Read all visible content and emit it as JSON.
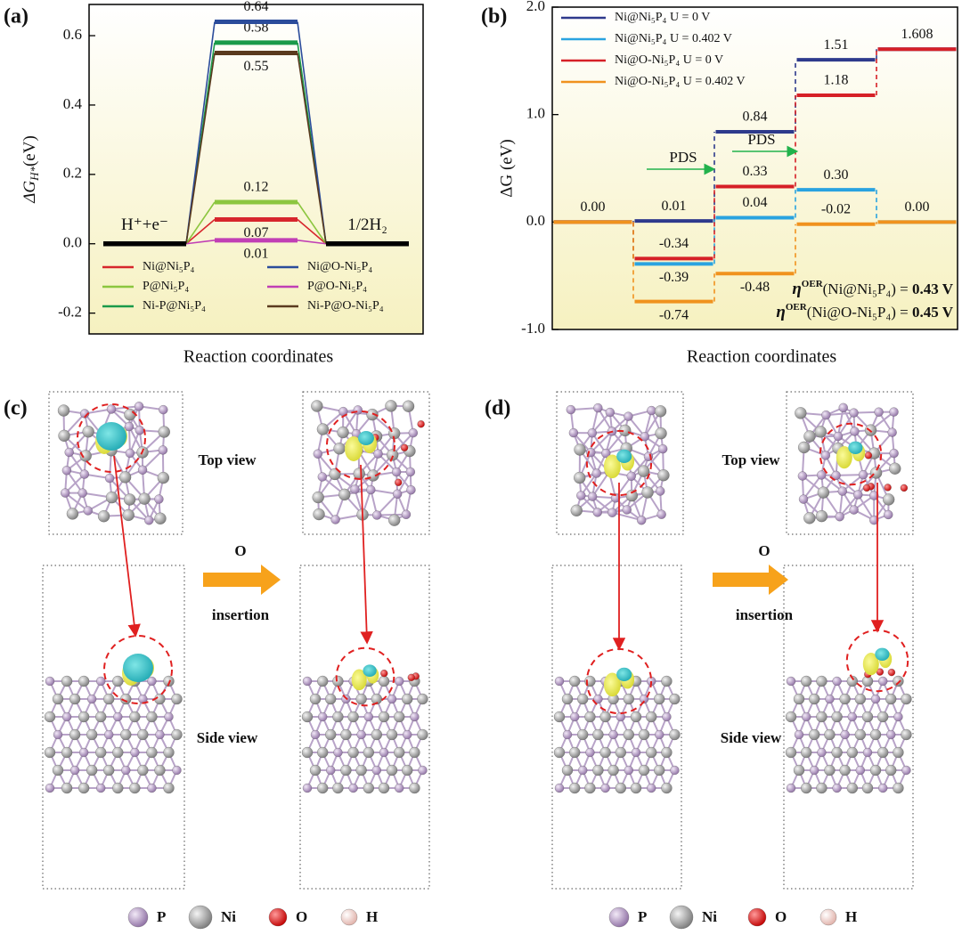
{
  "chart_data": [
    {
      "type": "step",
      "panel_label": "(a)",
      "ylabel": {
        "main": "ΔG",
        "sub": "H*",
        "unit": "(eV)"
      },
      "xlabel": "Reaction coordinates",
      "categories": [
        "H⁺+e⁻",
        null,
        "1/2H₂"
      ],
      "ylim": [
        -0.26,
        0.69
      ],
      "yticks": [
        -0.2,
        {
          "value": 0,
          "label": "0.0"
        },
        0.2,
        0.4,
        0.6
      ],
      "end_color": "#000000",
      "connector": "solid",
      "legend": "bottom",
      "series": [
        {
          "name": "Ni@Ni₅P₄",
          "color": "#d7262c",
          "values": [
            0,
            0.07,
            0
          ],
          "value_labels": [
            null,
            "0.07",
            null
          ]
        },
        {
          "name": "P@Ni₅P₄",
          "color": "#8cc63f",
          "values": [
            0,
            0.12,
            0
          ],
          "value_labels": [
            null,
            "0.12",
            null
          ]
        },
        {
          "name": "Ni-P@Ni₅P₄",
          "color": "#1a9a4a",
          "values": [
            0,
            0.58,
            0
          ],
          "value_labels": [
            null,
            "0.58",
            null
          ]
        },
        {
          "name": "Ni@O-Ni₅P₄",
          "color": "#2b4c9b",
          "values": [
            0,
            0.64,
            0
          ],
          "value_labels": [
            null,
            "0.64",
            null
          ]
        },
        {
          "name": "P@O-Ni₅P₄",
          "color": "#c13fb5",
          "values": [
            0,
            0.01,
            0
          ],
          "value_labels": [
            null,
            "0.01",
            null
          ]
        },
        {
          "name": "Ni-P@O-Ni₅P₄",
          "color": "#5a3a1e",
          "values": [
            0,
            0.55,
            0
          ],
          "value_labels": [
            null,
            "0.55",
            null
          ]
        }
      ]
    },
    {
      "type": "step",
      "panel_label": "(b)",
      "ylabel": "ΔG (eV)",
      "xlabel": "Reaction coordinates",
      "categories": [
        null,
        null,
        null,
        null,
        null
      ],
      "ylim": [
        -1.0,
        2.0
      ],
      "yticks": [
        {
          "value": -1,
          "label": "-1.0"
        },
        {
          "value": 0,
          "label": "0.0"
        },
        {
          "value": 1,
          "label": "1.0"
        },
        {
          "value": 2,
          "label": "2.0"
        }
      ],
      "connector": "dashed",
      "legend": "top-left",
      "series": [
        {
          "name": "Ni@Ni₅P₄ U = 0 V",
          "color": "#2e3a8c",
          "values": [
            0,
            0.01,
            0.84,
            1.51,
            1.608
          ],
          "value_labels": [
            "0.00",
            "0.01",
            "0.84",
            "1.51",
            "1.608"
          ]
        },
        {
          "name": "Ni@Ni₅P₄ U = 0.402 V",
          "color": "#29a3e0",
          "values": [
            0,
            -0.39,
            0.04,
            0.3,
            0
          ],
          "value_labels": [
            null,
            "-0.39",
            "0.04",
            "0.30",
            "0.00"
          ]
        },
        {
          "name": "Ni@O-Ni₅P₄ U = 0 V",
          "color": "#d62027",
          "values": [
            0,
            -0.34,
            0.33,
            1.18,
            1.608
          ],
          "value_labels": [
            null,
            "-0.34",
            "0.33",
            "1.18",
            null
          ]
        },
        {
          "name": "Ni@O-Ni₅P₄ U = 0.402 V",
          "color": "#f0921e",
          "values": [
            0,
            -0.74,
            -0.48,
            -0.02,
            0
          ],
          "value_labels": [
            null,
            "-0.74",
            "-0.48",
            "-0.02",
            null
          ]
        }
      ],
      "annotations": [
        "PDS",
        "PDS"
      ],
      "overpotentials": [
        {
          "symbol": "η",
          "sup": "OER",
          "subject": "(Ni@Ni₅P₄) = ",
          "value": "0.43 V"
        },
        {
          "symbol": "η",
          "sup": "OER",
          "subject": "(Ni@O-Ni₅P₄) = ",
          "value": "0.45 V"
        }
      ]
    }
  ],
  "panels": [
    {
      "label": "(c)",
      "top_view": "Top view",
      "side_view": "Side view",
      "arrow_top": "O",
      "arrow_bottom": "insertion",
      "atoms": [
        "P",
        "Ni",
        "O",
        "H"
      ]
    },
    {
      "label": "(d)",
      "top_view": "Top view",
      "side_view": "Side view",
      "arrow_top": "O",
      "arrow_bottom": "insertion",
      "atoms": [
        "P",
        "Ni",
        "O",
        "H"
      ]
    }
  ]
}
